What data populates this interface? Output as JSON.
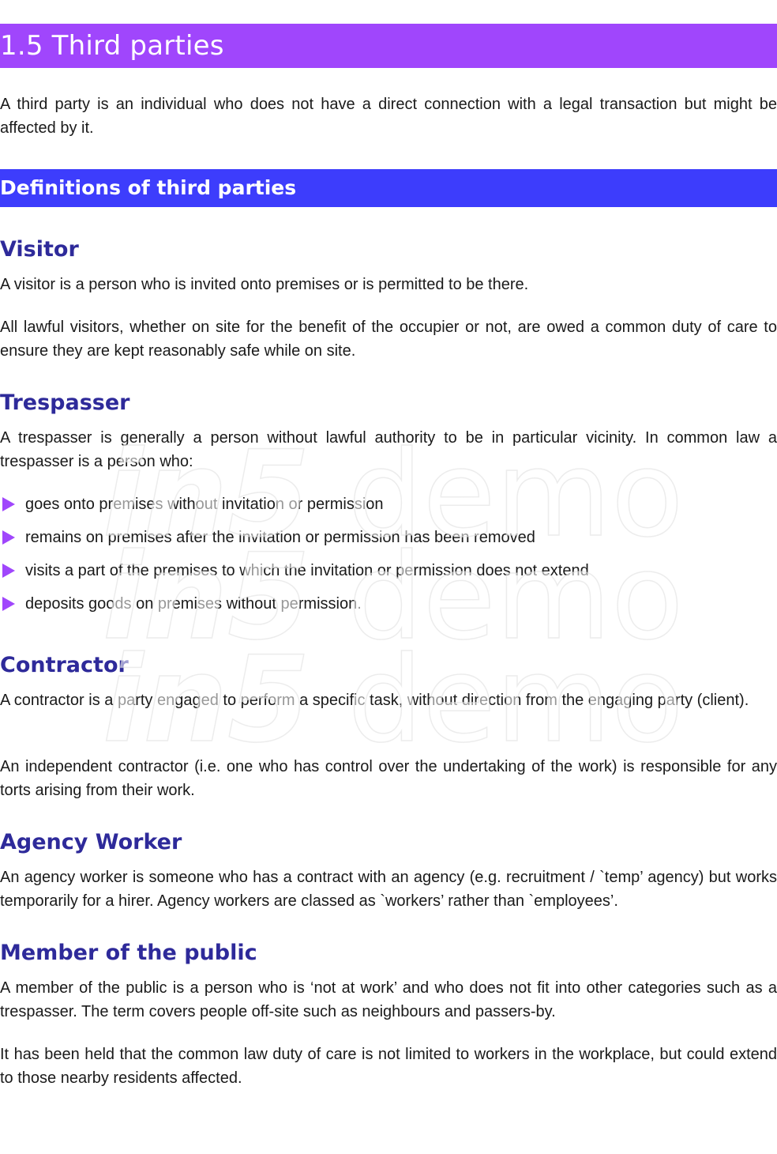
{
  "title": "1.5 Third parties",
  "intro": "A third party is an individual who does not have a direct connection with a legal transaction but might be affected by it.",
  "subheading": "Definitions of third parties",
  "sections": {
    "visitor": {
      "heading": "Visitor",
      "p1": "A visitor is a person who is invited onto premises or is permitted to be there.",
      "p2": "All lawful visitors, whether on site for the benefit of the occupier or not, are owed a common duty of care to ensure they are kept reasonably safe while on site."
    },
    "trespasser": {
      "heading": "Trespasser",
      "p1": "A trespasser is generally a person without lawful authority to be in particular vicinity. In common law a trespasser is a person who:",
      "bullets": [
        "goes onto premises without invitation or permission",
        "remains on premises after the invitation or permission has been removed",
        "visits a part of the premises to which the invitation or permission does not extend",
        "deposits goods on premises without permission."
      ]
    },
    "contractor": {
      "heading": "Contractor",
      "p1": "A contractor is a party engaged to perform a specific task, without direction from the engaging party (client).",
      "p2": "An independent contractor (i.e. one who has control over the undertaking of the work) is responsible for any torts arising from their work."
    },
    "agency": {
      "heading": "Agency Worker",
      "p1": "An agency worker is someone who has a contract with an agency (e.g. recruitment / `temp’ agency) but works temporarily for a hirer. Agency workers are classed as `workers’ rather than `employees’."
    },
    "public": {
      "heading": "Member of the public",
      "p1": "A member of the public is a person who is ‘not at work’ and who does not fit into other categories such as a trespasser. The term covers people off-site such as neighbours and passers-by.",
      "p2": "It has been held that the common law duty of care is not limited to workers in the workplace, but could extend to those nearby residents affected."
    }
  },
  "watermark": {
    "brand": "in5",
    "word": "demo"
  },
  "colors": {
    "title_banner": "#a046fc",
    "subheading_banner": "#3d3dfc",
    "section_heading": "#2e2a9a",
    "bullet_marker": "#a046fc"
  },
  "icons": {
    "bullet": "right-triangle-icon"
  }
}
